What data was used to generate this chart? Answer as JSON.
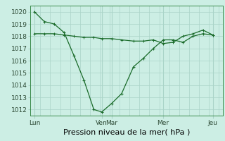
{
  "bg_color": "#cceee4",
  "grid_color": "#aad4c8",
  "line_color": "#1a6b2a",
  "ylim": [
    1011.5,
    1020.5
  ],
  "yticks": [
    1012,
    1013,
    1014,
    1015,
    1016,
    1017,
    1018,
    1019,
    1020
  ],
  "xlabel": "Pression niveau de la mer( hPa )",
  "xlabel_fontsize": 8,
  "tick_fontsize": 6.5,
  "xtick_labels": [
    "Lun",
    "Ven",
    "Mar",
    "Mer",
    "Jeu"
  ],
  "xtick_positions": [
    0.0,
    3.4,
    3.9,
    6.5,
    9.0
  ],
  "xlim": [
    -0.2,
    9.5
  ],
  "line1_x": [
    0.0,
    0.5,
    1.0,
    1.5,
    2.0,
    2.5,
    3.0,
    3.4,
    3.9,
    4.4,
    5.0,
    5.5,
    6.0,
    6.5,
    7.0,
    7.5,
    8.0,
    8.5,
    9.0
  ],
  "line1_y": [
    1020.0,
    1019.2,
    1019.0,
    1018.3,
    1016.4,
    1014.4,
    1012.0,
    1011.8,
    1012.5,
    1013.3,
    1015.5,
    1016.2,
    1017.0,
    1017.7,
    1017.7,
    1017.5,
    1018.0,
    1018.2,
    1018.1
  ],
  "line2_x": [
    0.0,
    0.5,
    1.0,
    1.5,
    2.0,
    2.5,
    3.0,
    3.4,
    3.9,
    4.4,
    5.0,
    5.5,
    6.0,
    6.5,
    7.0,
    7.5,
    8.0,
    8.5,
    9.0
  ],
  "line2_y": [
    1018.2,
    1018.2,
    1018.2,
    1018.1,
    1018.0,
    1017.9,
    1017.9,
    1017.8,
    1017.8,
    1017.7,
    1017.6,
    1017.6,
    1017.7,
    1017.4,
    1017.5,
    1018.0,
    1018.2,
    1018.5,
    1018.1
  ],
  "vline_x": [
    0.0,
    3.4,
    3.9,
    6.5,
    9.0
  ],
  "hline_y": [
    1012,
    1013,
    1014,
    1015,
    1016,
    1017,
    1018,
    1019,
    1020
  ],
  "marker": "+"
}
